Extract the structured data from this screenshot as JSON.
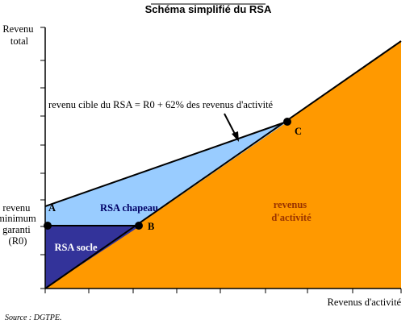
{
  "chart_data": {
    "type": "area",
    "title": "Schéma simplifié du RSA",
    "ylabel_lines": [
      "Revenu",
      "total"
    ],
    "xlabel": "Revenus d'activité",
    "source": "Source : DGTPE.",
    "grid": false,
    "taux_cumul": 0.62,
    "annotation": "revenu cible du RSA = R0 + 62% des revenus d'activité",
    "y_start_lines": [
      "revenu",
      "minimum",
      "garanti",
      "(R0)"
    ],
    "points": [
      {
        "label": "A"
      },
      {
        "label": "B"
      },
      {
        "label": "C"
      }
    ],
    "regions": [
      {
        "name": "socle",
        "label": "RSA socle",
        "color": "#33339a",
        "text_color": "#ffffff"
      },
      {
        "name": "chapeau",
        "label": "RSA chapeau",
        "color": "#99ccff",
        "text_color": "#000066"
      },
      {
        "name": "activite",
        "label_lines": [
          "revenus",
          "d'activité"
        ],
        "color": "#ff9900",
        "text_color": "#993300"
      }
    ]
  }
}
